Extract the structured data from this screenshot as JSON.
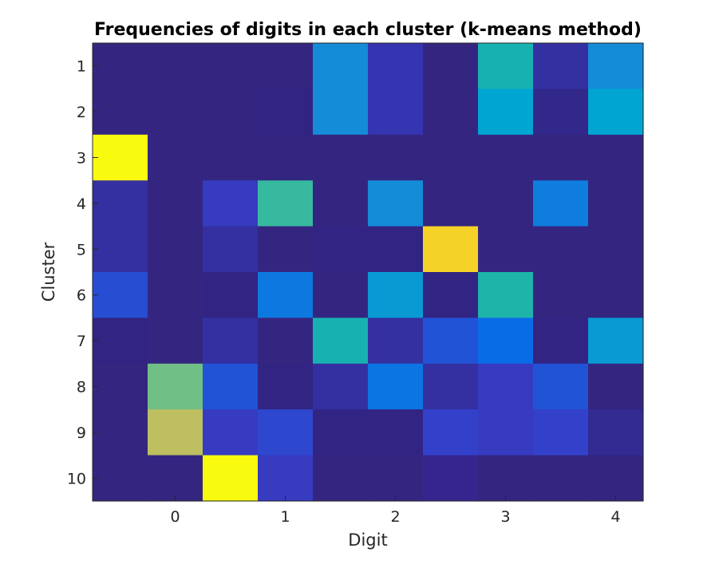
{
  "chart_data": {
    "type": "heatmap",
    "title": "Frequencies of digits in each cluster (k-means method)",
    "xlabel": "Digit",
    "ylabel": "Cluster",
    "x_tick_labels": [
      "0",
      "1",
      "2",
      "3",
      "4"
    ],
    "y_tick_labels": [
      "1",
      "2",
      "3",
      "4",
      "5",
      "6",
      "7",
      "8",
      "9",
      "10"
    ],
    "x_tick_positions": [
      2,
      4,
      6,
      8,
      10
    ],
    "num_columns": 10,
    "num_rows": 10,
    "colormap": "parula",
    "colorbar": false,
    "grid": false,
    "cells": [
      [
        0.02,
        0.02,
        0.02,
        0.02,
        0.45,
        0.12,
        0.02,
        0.6,
        0.1,
        0.45
      ],
      [
        0.02,
        0.02,
        0.02,
        0.06,
        0.45,
        0.12,
        0.02,
        0.52,
        0.07,
        0.52
      ],
      [
        1.0,
        0.02,
        0.02,
        0.02,
        0.02,
        0.02,
        0.02,
        0.02,
        0.02,
        0.02
      ],
      [
        0.1,
        0.02,
        0.14,
        0.66,
        0.02,
        0.45,
        0.02,
        0.02,
        0.38,
        0.02
      ],
      [
        0.1,
        0.02,
        0.1,
        0.02,
        0.06,
        0.06,
        0.95,
        0.02,
        0.02,
        0.02
      ],
      [
        0.2,
        0.02,
        0.06,
        0.36,
        0.02,
        0.49,
        0.06,
        0.62,
        0.02,
        0.02
      ],
      [
        0.06,
        0.02,
        0.1,
        0.02,
        0.6,
        0.1,
        0.22,
        0.3,
        0.06,
        0.49
      ],
      [
        0.02,
        0.74,
        0.22,
        0.06,
        0.1,
        0.34,
        0.1,
        0.14,
        0.22,
        0.02
      ],
      [
        0.02,
        0.85,
        0.14,
        0.18,
        0.06,
        0.06,
        0.16,
        0.14,
        0.16,
        0.08
      ],
      [
        0.02,
        0.02,
        1.0,
        0.14,
        0.0,
        0.0,
        0.04,
        0.0,
        0.0,
        0.0
      ]
    ]
  }
}
